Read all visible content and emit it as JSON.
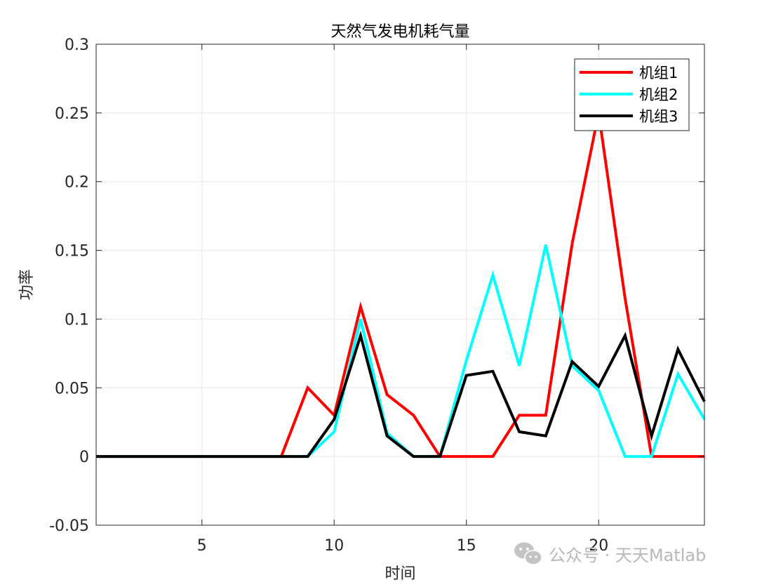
{
  "chart_data": {
    "type": "line",
    "title": "天然气发电机耗气量",
    "xlabel": "时间",
    "ylabel": "功率",
    "xlim": [
      1,
      24
    ],
    "ylim": [
      -0.05,
      0.3
    ],
    "xticks": [
      5,
      10,
      15,
      20
    ],
    "yticks": [
      -0.05,
      0,
      0.05,
      0.1,
      0.15,
      0.2,
      0.25,
      0.3
    ],
    "x_tick_labels": [
      "5",
      "10",
      "15",
      "20"
    ],
    "y_tick_labels": [
      "-0.05",
      "0",
      "0.05",
      "0.1",
      "0.15",
      "0.2",
      "0.25",
      "0.3"
    ],
    "grid": true,
    "legend_position": "top-right",
    "x": [
      1,
      2,
      3,
      4,
      5,
      6,
      7,
      8,
      9,
      10,
      11,
      12,
      13,
      14,
      15,
      16,
      17,
      18,
      19,
      20,
      21,
      22,
      23,
      24
    ],
    "series": [
      {
        "name": "机组1",
        "color": "#ff0000",
        "values": [
          0,
          0,
          0,
          0,
          0,
          0,
          0,
          0,
          0.05,
          0.03,
          0.109,
          0.045,
          0.03,
          0,
          0,
          0,
          0.03,
          0.03,
          0.155,
          0.25,
          0.115,
          0,
          0,
          0
        ]
      },
      {
        "name": "机组2",
        "color": "#00ffff",
        "values": [
          0,
          0,
          0,
          0,
          0,
          0,
          0,
          0,
          0,
          0.018,
          0.1,
          0.017,
          0,
          0,
          0.07,
          0.132,
          0.066,
          0.154,
          0.066,
          0.048,
          0,
          0,
          0.06,
          0.027
        ]
      },
      {
        "name": "机组3",
        "color": "#000000",
        "values": [
          0,
          0,
          0,
          0,
          0,
          0,
          0,
          0,
          0,
          0.027,
          0.088,
          0.015,
          0,
          0,
          0.059,
          0.062,
          0.018,
          0.015,
          0.069,
          0.051,
          0.088,
          0.015,
          0.078,
          0.04
        ]
      }
    ]
  },
  "watermark": {
    "text": "公众号 · 天天Matlab",
    "icon": "wechat-icon"
  }
}
